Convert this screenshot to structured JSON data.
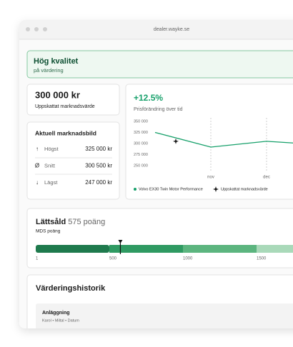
{
  "window": {
    "url": "dealer.wayke.se"
  },
  "banner": {
    "title": "Hög kvalitet",
    "subtitle": "på värdering"
  },
  "estimate": {
    "value": "300 000 kr",
    "label": "Uppskattat marknadsvärde"
  },
  "market": {
    "title": "Aktuell marknadsbild",
    "rows": [
      {
        "icon": "↑",
        "label": "Högst",
        "value": "325 000 kr"
      },
      {
        "icon": "Ø",
        "label": "Snitt",
        "value": "300 500 kr"
      },
      {
        "icon": "↓",
        "label": "Lägst",
        "value": "247 000 kr"
      }
    ]
  },
  "price_chart": {
    "type": "line",
    "title": "+12.5%",
    "subtitle": "Prisförändring över tid",
    "categories": [
      null,
      "nov",
      "dec",
      null
    ],
    "series": [
      {
        "name": "Volvo EX30 Twin Motor Performance",
        "color": "#16a06a",
        "values": [
          325000,
          292000,
          305000,
          297000
        ]
      }
    ],
    "marker": {
      "name": "Uppskattat marknadsvärde",
      "value": 305000
    },
    "ylim": [
      250000,
      350000
    ],
    "yticks": [
      {
        "value": 350000,
        "label": "350 000"
      },
      {
        "value": 325000,
        "label": "325 000"
      },
      {
        "value": 300000,
        "label": "300 000"
      },
      {
        "value": 275000,
        "label": "275 000"
      },
      {
        "value": 250000,
        "label": "250 000"
      }
    ]
  },
  "mds": {
    "title": "Lättsåld",
    "score": 575,
    "score_label": "575 poäng",
    "subtitle": "MDS poäng",
    "colors": [
      "#1f7a4d",
      "#2f9a62",
      "#5cb57f",
      "#a9d9b9"
    ],
    "ticks": [
      1,
      500,
      1000,
      1500
    ]
  },
  "history": {
    "title": "Värderingshistorik",
    "entry": {
      "title": "Anläggning",
      "meta": "Karol • Miltal • Datum"
    }
  }
}
